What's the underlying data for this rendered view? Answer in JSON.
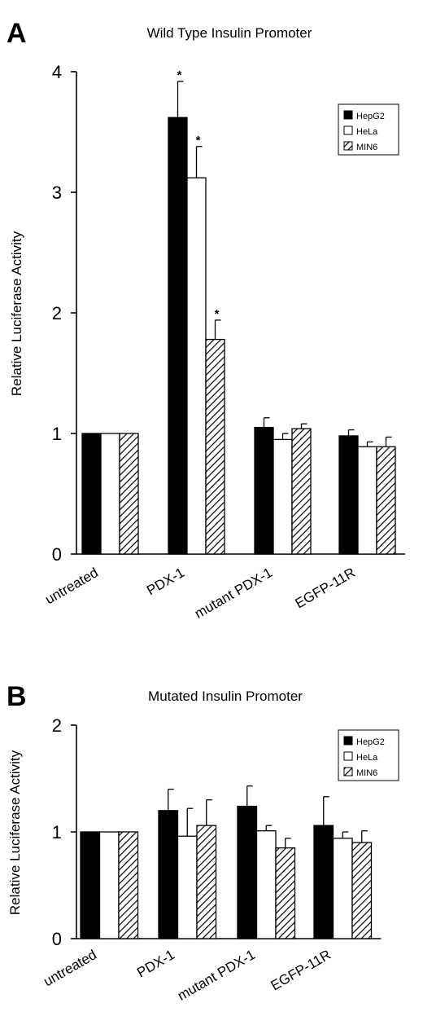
{
  "chart_data": [
    {
      "type": "bar",
      "panel": "A",
      "title": "Wild Type Insulin Promoter",
      "ylabel": "Relative Luciferase Activity",
      "xlabel": "",
      "ylim": [
        0,
        4
      ],
      "yticks": [
        0,
        1,
        2,
        3,
        4
      ],
      "categories": [
        "untreated",
        "PDX-1",
        "mutant PDX-1",
        "EGFP-11R"
      ],
      "series": [
        {
          "name": "HepG2",
          "fill": "solid",
          "values": [
            1.0,
            3.62,
            1.05,
            0.98
          ],
          "errors": [
            0,
            0.3,
            0.08,
            0.05
          ]
        },
        {
          "name": "HeLa",
          "fill": "open",
          "values": [
            1.0,
            3.12,
            0.95,
            0.89
          ],
          "errors": [
            0,
            0.26,
            0.05,
            0.04
          ]
        },
        {
          "name": "MIN6",
          "fill": "hatched",
          "values": [
            1.0,
            1.78,
            1.04,
            0.89
          ],
          "errors": [
            0,
            0.16,
            0.04,
            0.08
          ]
        }
      ],
      "significance": [
        [
          null,
          "*",
          null,
          null
        ],
        [
          null,
          "*",
          null,
          null
        ],
        [
          null,
          "*",
          null,
          null
        ]
      ],
      "legend": {
        "position": "top-right",
        "entries": [
          "HepG2",
          "HeLa",
          "MIN6"
        ]
      },
      "grid": false
    },
    {
      "type": "bar",
      "panel": "B",
      "title": "Mutated Insulin Promoter",
      "ylabel": "Relative Luciferase Activity",
      "xlabel": "",
      "ylim": [
        0,
        2
      ],
      "yticks": [
        0,
        1,
        2
      ],
      "categories": [
        "untreated",
        "PDX-1",
        "mutant PDX-1",
        "EGFP-11R"
      ],
      "series": [
        {
          "name": "HepG2",
          "fill": "solid",
          "values": [
            1.0,
            1.2,
            1.24,
            1.06
          ],
          "errors": [
            0,
            0.2,
            0.19,
            0.27
          ]
        },
        {
          "name": "HeLa",
          "fill": "open",
          "values": [
            1.0,
            0.96,
            1.01,
            0.94
          ],
          "errors": [
            0,
            0.26,
            0.05,
            0.06
          ]
        },
        {
          "name": "MIN6",
          "fill": "hatched",
          "values": [
            1.0,
            1.06,
            0.85,
            0.9
          ],
          "errors": [
            0,
            0.24,
            0.09,
            0.11
          ]
        }
      ],
      "legend": {
        "position": "top-right",
        "entries": [
          "HepG2",
          "HeLa",
          "MIN6"
        ]
      },
      "grid": false
    }
  ]
}
